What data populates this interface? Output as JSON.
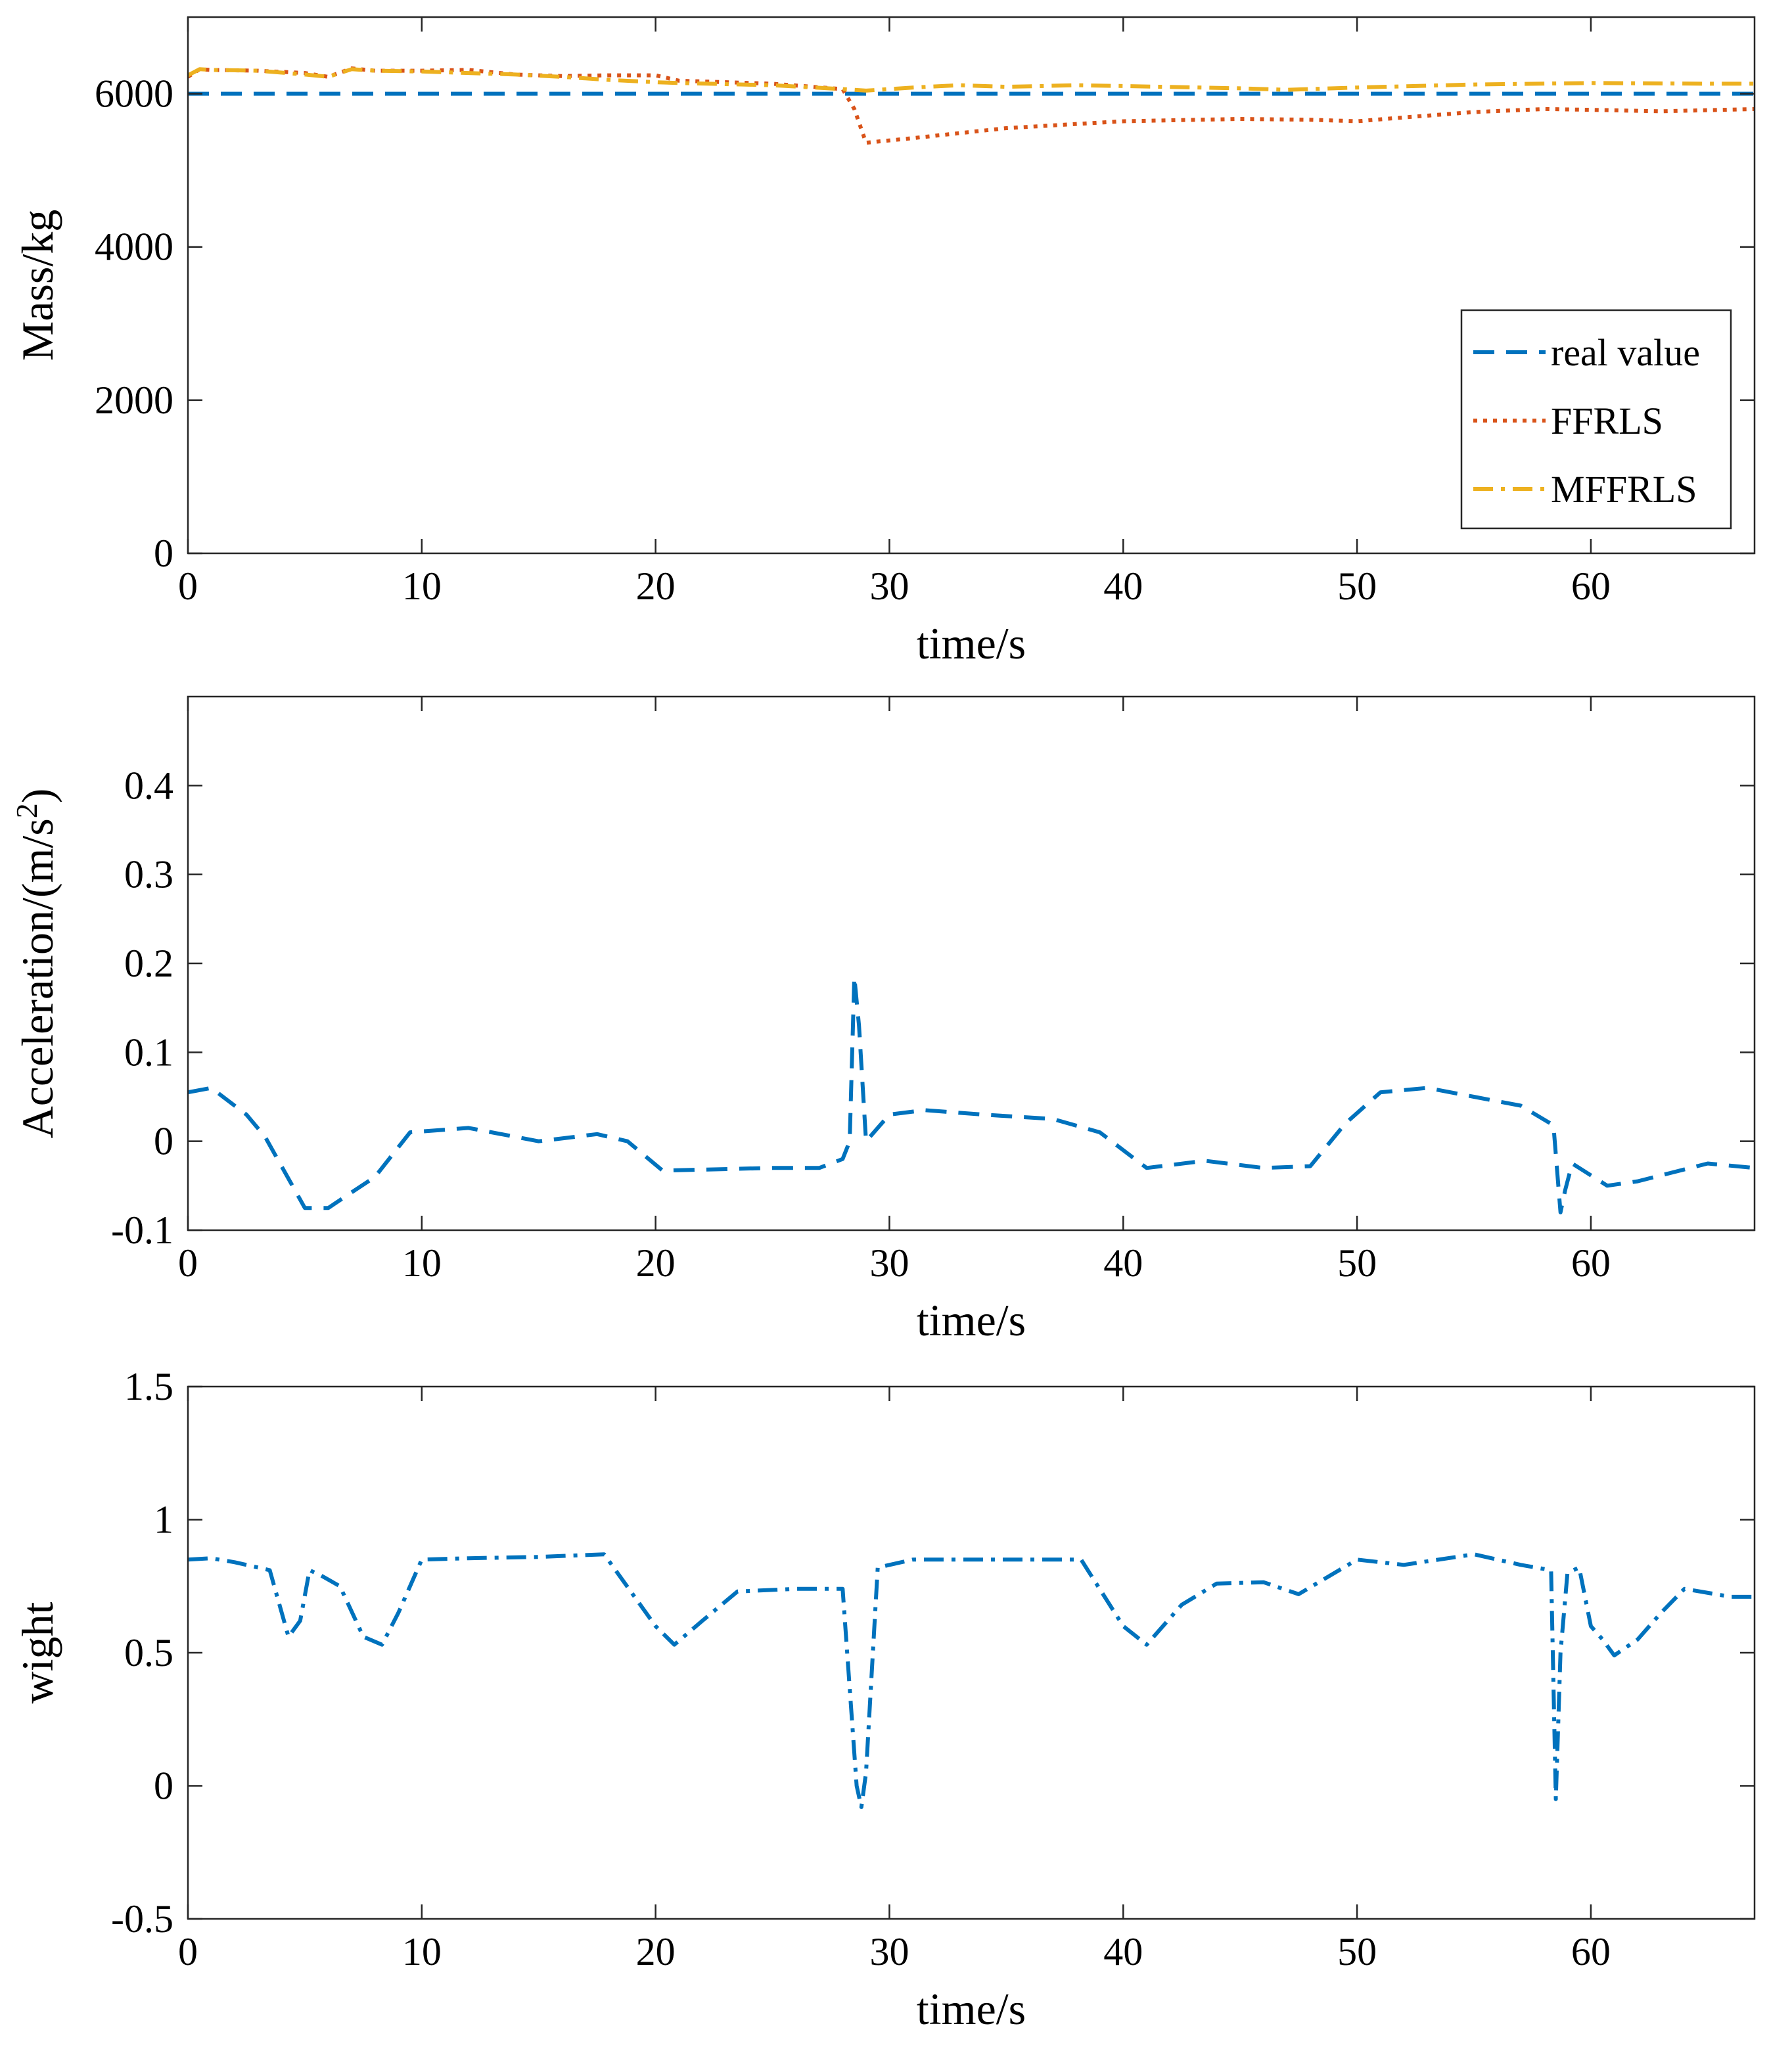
{
  "figure_title": "",
  "colors": {
    "real_value": "#0072BD",
    "ffrls": "#D95319",
    "mffrls": "#EDB120",
    "acceleration": "#0072BD",
    "weight": "#0072BD"
  },
  "chart_data": [
    {
      "id": "mass",
      "type": "line",
      "title": "",
      "xlabel": "time/s",
      "ylabel": "Mass/kg",
      "xlim": [
        0,
        67
      ],
      "ylim": [
        0,
        7000
      ],
      "xticks": [
        0,
        10,
        20,
        30,
        40,
        50,
        60
      ],
      "xtick_labels": [
        "0",
        "10",
        "20",
        "30",
        "40",
        "50",
        "60"
      ],
      "yticks": [
        0,
        2000,
        4000,
        6000
      ],
      "ytick_labels": [
        "0",
        "2000",
        "4000",
        "6000"
      ],
      "grid": false,
      "legend": {
        "placement": "bottom-right",
        "entries": [
          "real value",
          "FFRLS",
          "MFFRLS"
        ]
      },
      "series": [
        {
          "name": "real value",
          "style": "dashed",
          "color_key": "real_value",
          "x": [
            0,
            67
          ],
          "y": [
            6000,
            6000
          ]
        },
        {
          "name": "FFRLS",
          "style": "dotted",
          "color_key": "ffrls",
          "x": [
            0,
            0.5,
            1,
            3,
            5,
            6,
            7,
            8,
            10,
            12,
            14,
            16,
            18,
            20,
            21,
            25,
            28,
            28.5,
            29,
            31,
            35,
            40,
            45,
            48,
            50,
            52,
            55,
            58,
            60,
            63,
            67
          ],
          "y": [
            6220,
            6320,
            6310,
            6300,
            6270,
            6220,
            6330,
            6300,
            6300,
            6310,
            6250,
            6230,
            6240,
            6240,
            6170,
            6130,
            6060,
            5800,
            5360,
            5420,
            5550,
            5640,
            5670,
            5660,
            5640,
            5690,
            5760,
            5800,
            5790,
            5770,
            5800
          ]
        },
        {
          "name": "MFFRLS",
          "style": "dashdot",
          "color_key": "mffrls",
          "x": [
            0,
            0.5,
            1,
            3,
            5,
            6,
            7,
            8,
            10,
            12,
            14,
            16,
            18,
            20,
            21,
            25,
            28,
            29,
            31,
            33,
            35,
            38,
            40,
            45,
            47,
            50,
            55,
            60,
            65,
            67
          ],
          "y": [
            6240,
            6320,
            6310,
            6300,
            6250,
            6220,
            6320,
            6300,
            6290,
            6270,
            6250,
            6220,
            6180,
            6150,
            6140,
            6110,
            6060,
            6040,
            6080,
            6110,
            6090,
            6110,
            6100,
            6070,
            6050,
            6080,
            6120,
            6140,
            6130,
            6130
          ]
        }
      ]
    },
    {
      "id": "acceleration",
      "type": "line",
      "title": "",
      "xlabel": "time/s",
      "ylabel": "Acceleration/(m/s",
      "ylabel_superscript": "2",
      "ylabel_suffix": ")",
      "xlim": [
        0,
        67
      ],
      "ylim": [
        -0.1,
        0.5
      ],
      "xticks": [
        0,
        10,
        20,
        30,
        40,
        50,
        60
      ],
      "xtick_labels": [
        "0",
        "10",
        "20",
        "30",
        "40",
        "50",
        "60"
      ],
      "yticks": [
        -0.1,
        0,
        0.1,
        0.2,
        0.3,
        0.4
      ],
      "ytick_labels": [
        "-0.1",
        "0",
        "0.1",
        "0.2",
        "0.3",
        "0.4"
      ],
      "grid": false,
      "series": [
        {
          "name": "acceleration",
          "style": "dashed",
          "color_key": "acceleration",
          "x": [
            0,
            1,
            2.5,
            3.3,
            5,
            6,
            8,
            9.5,
            12,
            15,
            17.5,
            18.8,
            20.3,
            25,
            27,
            28,
            28.3,
            28.5,
            28.7,
            29,
            30,
            31.5,
            34,
            37,
            39,
            41,
            43.5,
            46,
            48,
            49.5,
            51,
            53,
            55,
            57,
            58.4,
            58.7,
            58.9,
            59.2,
            60.7,
            62,
            65,
            67
          ],
          "y": [
            0.055,
            0.06,
            0.03,
            0.005,
            -0.075,
            -0.075,
            -0.04,
            0.01,
            0.015,
            0.0,
            0.008,
            0.0,
            -0.033,
            -0.03,
            -0.03,
            -0.02,
            0.0,
            0.185,
            0.13,
            0.0,
            0.03,
            0.035,
            0.03,
            0.025,
            0.01,
            -0.03,
            -0.022,
            -0.03,
            -0.028,
            0.02,
            0.055,
            0.06,
            0.05,
            0.04,
            0.018,
            -0.08,
            -0.055,
            -0.025,
            -0.05,
            -0.045,
            -0.025,
            -0.03
          ]
        }
      ]
    },
    {
      "id": "weight",
      "type": "line",
      "title": "",
      "xlabel": "time/s",
      "ylabel": "wight",
      "xlim": [
        0,
        67
      ],
      "ylim": [
        -0.5,
        1.5
      ],
      "xticks": [
        0,
        10,
        20,
        30,
        40,
        50,
        60
      ],
      "xtick_labels": [
        "0",
        "10",
        "20",
        "30",
        "40",
        "50",
        "60"
      ],
      "yticks": [
        -0.5,
        0,
        0.5,
        1,
        1.5
      ],
      "ytick_labels": [
        "-0.5",
        "0",
        "0.5",
        "1",
        "1.5"
      ],
      "grid": false,
      "series": [
        {
          "name": "weight",
          "style": "dashdot",
          "color_key": "weight",
          "x": [
            0,
            1,
            2,
            3.5,
            4.3,
            4.8,
            5.2,
            5.7,
            6.5,
            7.5,
            8.3,
            9,
            10,
            12,
            15,
            17.8,
            20,
            20.8,
            22,
            23.5,
            26,
            28,
            28.6,
            28.8,
            29,
            29.5,
            31,
            35,
            38.2,
            40,
            41,
            42.5,
            44,
            46,
            47.5,
            50,
            52,
            55,
            57,
            58.3,
            58.5,
            58.7,
            59,
            59.5,
            60,
            60.5,
            61,
            62,
            63,
            64,
            66,
            67
          ],
          "y": [
            0.85,
            0.855,
            0.84,
            0.81,
            0.56,
            0.62,
            0.81,
            0.79,
            0.75,
            0.56,
            0.53,
            0.65,
            0.85,
            0.855,
            0.86,
            0.87,
            0.6,
            0.53,
            0.62,
            0.73,
            0.74,
            0.74,
            0.0,
            -0.08,
            0.05,
            0.82,
            0.85,
            0.85,
            0.85,
            0.6,
            0.53,
            0.68,
            0.76,
            0.765,
            0.72,
            0.85,
            0.83,
            0.87,
            0.83,
            0.81,
            -0.05,
            0.5,
            0.8,
            0.82,
            0.6,
            0.55,
            0.49,
            0.55,
            0.65,
            0.74,
            0.71,
            0.71
          ]
        }
      ]
    }
  ]
}
